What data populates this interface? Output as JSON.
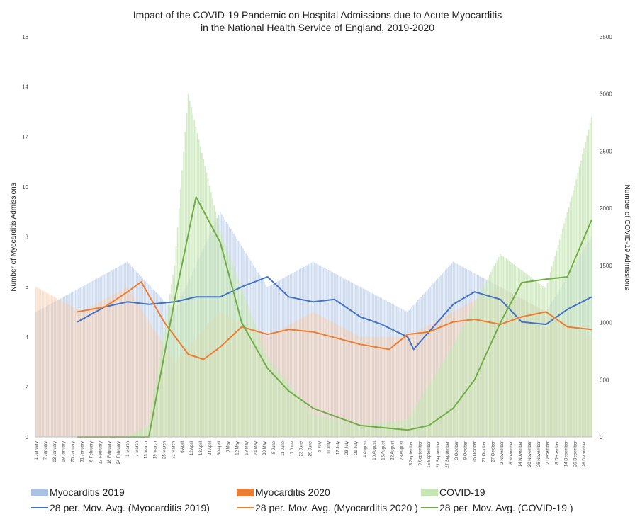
{
  "chart_data": {
    "type": "bar",
    "title": [
      "Impact of the COVID-19 Pandemic on Hospital Admissions due to Acute Myocarditis",
      "in the National Health Service of England, 2019-2020"
    ],
    "ylabel_left": "Number of Myocarditis Admissions",
    "ylabel_right": "Number of COVID-19 Admissions",
    "ylim_left": [
      0,
      16
    ],
    "ylim_right": [
      0,
      3500
    ],
    "yticks_left": [
      "0",
      "2",
      "4",
      "6",
      "8",
      "10",
      "12",
      "14",
      "16"
    ],
    "yticks_right": [
      "0",
      "500",
      "1000",
      "1500",
      "2000",
      "2500",
      "3000",
      "3500"
    ],
    "xticks": [
      "1 January",
      "7 January",
      "13 January",
      "19 January",
      "25 January",
      "31 January",
      "6 February",
      "12 February",
      "18 February",
      "24 February",
      "1 March",
      "7 March",
      "13 March",
      "19 March",
      "25 March",
      "31 March",
      "6 April",
      "12 April",
      "18 April",
      "24 April",
      "30 April",
      "6 May",
      "12 May",
      "18 May",
      "24 May",
      "30 May",
      "5 June",
      "11 June",
      "17 June",
      "23 June",
      "29 June",
      "5 July",
      "11 July",
      "17 July",
      "23 July",
      "29 July",
      "4 August",
      "10 August",
      "16 August",
      "22 August",
      "28 August",
      "3 September",
      "9 September",
      "15 September",
      "21 September",
      "27 September",
      "3 October",
      "9 October",
      "15 October",
      "21 October",
      "27 October",
      "2 November",
      "8 November",
      "14 November",
      "20 November",
      "26 November",
      "2 December",
      "8 December",
      "14 December",
      "20 December",
      "26 December"
    ],
    "x_range": [
      "1 January",
      "31 December"
    ],
    "grid": false,
    "legend_position": "bottom",
    "series": [
      {
        "name": "Myocarditis 2019",
        "type": "bar",
        "axis": "left",
        "color": "#a9c1e3",
        "x": [
          "1 January",
          "31 January",
          "1 March",
          "1 April",
          "1 May",
          "1 June",
          "1 July",
          "1 August",
          "1 September",
          "1 October",
          "1 November",
          "1 December",
          "31 December"
        ],
        "values": [
          5,
          6,
          7,
          5,
          9,
          6,
          7,
          6,
          5,
          7,
          6,
          5,
          8
        ]
      },
      {
        "name": "Myocarditis 2020",
        "type": "bar",
        "axis": "left",
        "color": "#f7c9a6",
        "x": [
          "1 January",
          "31 January",
          "1 March",
          "1 April",
          "1 May",
          "1 June",
          "1 July",
          "1 August",
          "1 September",
          "1 October",
          "1 November",
          "1 December",
          "31 December"
        ],
        "values": [
          6,
          5,
          6,
          3,
          5,
          4,
          5,
          4,
          4,
          5,
          6,
          5,
          4
        ]
      },
      {
        "name": "COVID-19",
        "type": "bar",
        "axis": "right",
        "color": "#c5e6b3",
        "x": [
          "1 January",
          "1 March",
          "15 March",
          "1 April",
          "10 April",
          "1 May",
          "1 June",
          "1 July",
          "1 August",
          "1 September",
          "1 October",
          "1 November",
          "1 December",
          "20 December",
          "31 December"
        ],
        "values": [
          0,
          0,
          100,
          1500,
          3000,
          1800,
          700,
          200,
          100,
          150,
          800,
          1600,
          1300,
          2200,
          2800
        ]
      },
      {
        "name": "28 per. Mov. Avg. (Myocarditis 2019)",
        "type": "line",
        "axis": "left",
        "color": "#4472c4",
        "x": [
          "28 January",
          "15 February",
          "1 March",
          "15 March",
          "1 April",
          "15 April",
          "1 May",
          "15 May",
          "1 June",
          "15 June",
          "1 July",
          "15 July",
          "1 August",
          "15 August",
          "1 September",
          "5 September",
          "15 September",
          "1 October",
          "15 October",
          "1 November",
          "15 November",
          "1 December",
          "15 December",
          "31 December"
        ],
        "values": [
          4.6,
          5.2,
          5.4,
          5.3,
          5.4,
          5.6,
          5.6,
          6.0,
          6.4,
          5.6,
          5.4,
          5.5,
          4.8,
          4.5,
          4.0,
          3.5,
          4.2,
          5.3,
          5.8,
          5.5,
          4.6,
          4.5,
          5.1,
          5.6
        ]
      },
      {
        "name": "28 per. Mov. Avg. (Myocarditis 2020 )",
        "type": "line",
        "axis": "left",
        "color": "#ed7d31",
        "x": [
          "28 January",
          "15 February",
          "1 March",
          "10 March",
          "25 March",
          "10 April",
          "20 April",
          "1 May",
          "15 May",
          "1 June",
          "15 June",
          "1 July",
          "1 August",
          "20 August",
          "1 September",
          "15 September",
          "1 October",
          "15 October",
          "1 November",
          "15 November",
          "1 December",
          "15 December",
          "31 December"
        ],
        "values": [
          5.0,
          5.2,
          5.8,
          6.2,
          4.6,
          3.3,
          3.1,
          3.6,
          4.4,
          4.1,
          4.3,
          4.2,
          3.7,
          3.5,
          4.1,
          4.2,
          4.6,
          4.7,
          4.5,
          4.8,
          5.0,
          4.4,
          4.3
        ]
      },
      {
        "name": "28 per. Mov. Avg. (COVID-19 )",
        "type": "line",
        "axis": "right",
        "color": "#70ad47",
        "x": [
          "28 January",
          "1 March",
          "15 March",
          "1 April",
          "15 April",
          "1 May",
          "15 May",
          "1 June",
          "15 June",
          "1 July",
          "1 August",
          "1 September",
          "15 September",
          "1 October",
          "15 October",
          "1 November",
          "15 November",
          "1 December",
          "15 December",
          "31 December"
        ],
        "values": [
          0,
          0,
          0,
          1200,
          2100,
          1700,
          1000,
          600,
          400,
          250,
          100,
          60,
          100,
          250,
          500,
          1000,
          1350,
          1380,
          1400,
          1900
        ]
      }
    ]
  },
  "legend": [
    [
      {
        "label": "Myocarditis 2019",
        "kind": "box",
        "color": "#a9c1e3"
      },
      {
        "label": "Myocarditis 2020",
        "kind": "box",
        "color": "#ed7d31"
      },
      {
        "label": "COVID-19",
        "kind": "box",
        "color": "#c5e6b3"
      }
    ],
    [
      {
        "label": "28 per. Mov. Avg. (Myocarditis 2019)",
        "kind": "line",
        "color": "#4472c4"
      },
      {
        "label": "28 per. Mov. Avg. (Myocarditis 2020 )",
        "kind": "line",
        "color": "#ed7d31"
      },
      {
        "label": "28 per. Mov. Avg. (COVID-19 )",
        "kind": "line",
        "color": "#70ad47"
      }
    ]
  ]
}
